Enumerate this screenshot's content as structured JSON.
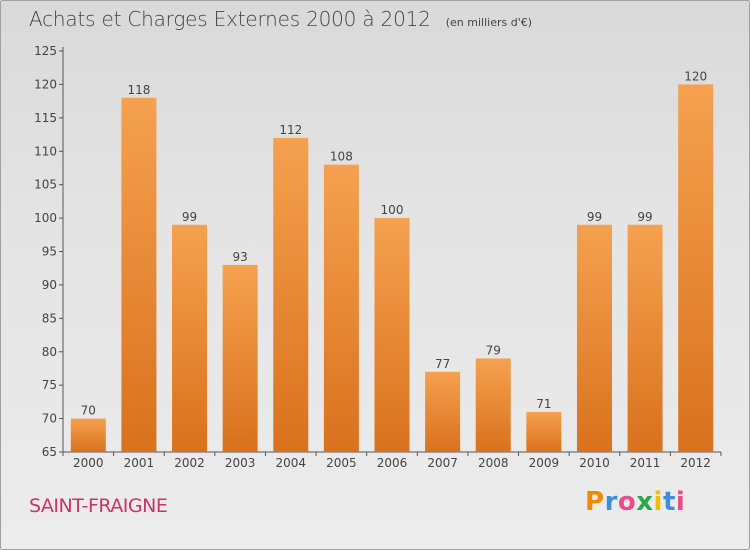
{
  "header": {
    "title": "Achats et Charges Externes 2000 à 2012",
    "subtitle": "(en milliers d'€)"
  },
  "footer": {
    "commune": "SAINT-FRAIGNE",
    "brand": "Proxiti"
  },
  "colors": {
    "bar_light": "#f5a14f",
    "bar_dark": "#d9711d",
    "axis_text": "#444444",
    "commune_text": "#cc3366"
  },
  "chart_data": {
    "type": "bar",
    "title": "Achats et Charges Externes 2000 à 2012",
    "subtitle": "(en milliers d'€)",
    "xlabel": "",
    "ylabel": "",
    "categories": [
      "2000",
      "2001",
      "2002",
      "2003",
      "2004",
      "2005",
      "2006",
      "2007",
      "2008",
      "2009",
      "2010",
      "2011",
      "2012"
    ],
    "values": [
      70,
      118,
      99,
      93,
      112,
      108,
      100,
      77,
      79,
      71,
      99,
      99,
      120
    ],
    "ylim": [
      65,
      125
    ],
    "yticks": [
      65,
      70,
      75,
      80,
      85,
      90,
      95,
      100,
      105,
      110,
      115,
      120,
      125
    ],
    "grid": false,
    "data_labels": true
  }
}
